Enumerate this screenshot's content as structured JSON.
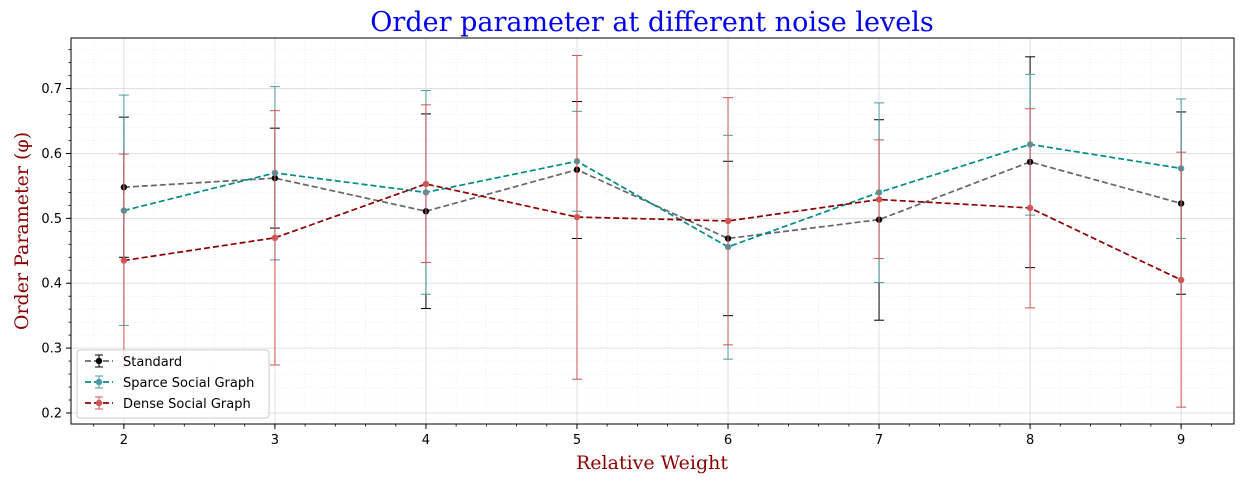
{
  "chart_data": {
    "type": "line",
    "title": "Order parameter at different noise levels",
    "xlabel": "Relative Weight",
    "ylabel": "Order Parameter (φ)",
    "x": [
      2,
      3,
      4,
      5,
      6,
      7,
      8,
      9
    ],
    "xlim": [
      1.65,
      9.35
    ],
    "ylim": [
      0.183,
      0.778
    ],
    "xticks": [
      "2",
      "3",
      "4",
      "5",
      "6",
      "7",
      "8",
      "9"
    ],
    "yticks": [
      "0.2",
      "0.3",
      "0.4",
      "0.5",
      "0.6",
      "0.7"
    ],
    "grid": true,
    "legend_position": "lower-left",
    "colors": {
      "title": "#0000ee",
      "axis_label": "#8b0000"
    },
    "series": [
      {
        "name": "Standard",
        "values": [
          0.548,
          0.562,
          0.511,
          0.575,
          0.469,
          0.498,
          0.587,
          0.523
        ],
        "err_low": [
          0.44,
          0.485,
          0.361,
          0.469,
          0.35,
          0.343,
          0.424,
          0.383
        ],
        "err_high": [
          0.656,
          0.639,
          0.661,
          0.68,
          0.588,
          0.652,
          0.749,
          0.664
        ],
        "line_color": "#666666",
        "marker_color": "#000000",
        "err_color": "#000000"
      },
      {
        "name": "Sparce Social Graph",
        "values": [
          0.512,
          0.57,
          0.54,
          0.588,
          0.456,
          0.54,
          0.614,
          0.577
        ],
        "err_low": [
          0.335,
          0.436,
          0.383,
          0.511,
          0.283,
          0.401,
          0.505,
          0.469
        ],
        "err_high": [
          0.69,
          0.703,
          0.697,
          0.665,
          0.628,
          0.678,
          0.722,
          0.684
        ],
        "line_color": "#008b8b",
        "marker_color": "#4a9aa0",
        "err_color": "#4a9aa0"
      },
      {
        "name": "Dense Social Graph",
        "values": [
          0.435,
          0.47,
          0.553,
          0.502,
          0.496,
          0.529,
          0.516,
          0.405
        ],
        "err_low": [
          0.272,
          0.274,
          0.432,
          0.252,
          0.305,
          0.438,
          0.362,
          0.209
        ],
        "err_high": [
          0.599,
          0.666,
          0.675,
          0.751,
          0.686,
          0.621,
          0.669,
          0.602
        ],
        "line_color": "#8b0000",
        "marker_color": "#d05555",
        "err_color": "#d05555"
      }
    ]
  }
}
